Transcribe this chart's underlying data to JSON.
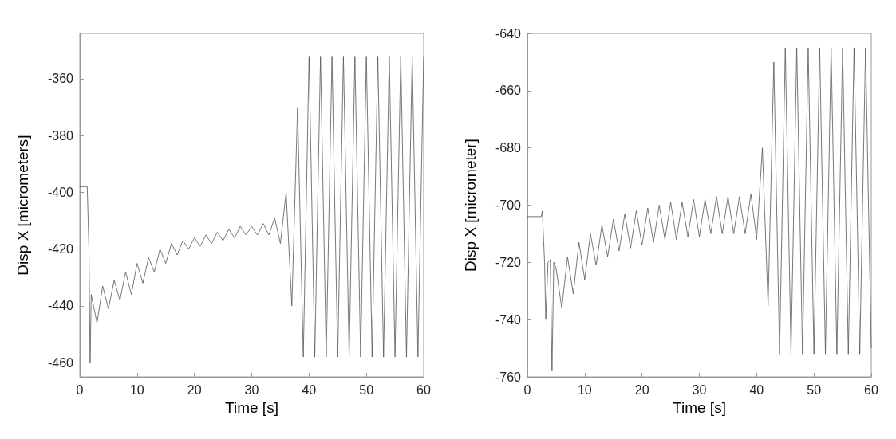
{
  "chart_data": [
    {
      "type": "line",
      "xlabel": "Time [s]",
      "ylabel": "Disp X [micrometers]",
      "xlim": [
        0,
        60
      ],
      "xticks": [
        0,
        10,
        20,
        30,
        40,
        50,
        60
      ],
      "ylim": [
        -465,
        -344
      ],
      "yticks": [
        -460,
        -440,
        -420,
        -400,
        -380,
        -360
      ],
      "grid": false,
      "marker": "none",
      "line_style": "solid",
      "series": [
        {
          "color": "#555555",
          "x": [
            0,
            1.3,
            1.6,
            1.8,
            2,
            3,
            4,
            5,
            6,
            7,
            8,
            9,
            10,
            11,
            12,
            13,
            14,
            15,
            16,
            17,
            18,
            19,
            20,
            21,
            22,
            23,
            24,
            25,
            26,
            27,
            28,
            29,
            30,
            31,
            32,
            33,
            34,
            35,
            36,
            37,
            38,
            39,
            40,
            41,
            42,
            43,
            44,
            45,
            46,
            47,
            48,
            49,
            50,
            51,
            52,
            53,
            54,
            55,
            56,
            57,
            58,
            59,
            60
          ],
          "values": [
            -398,
            -398,
            -420,
            -460,
            -436,
            -446,
            -433,
            -441,
            -431,
            -438,
            -428,
            -436,
            -425,
            -432,
            -423,
            -428,
            -420,
            -425,
            -418,
            -422,
            -417,
            -420,
            -416,
            -419,
            -415,
            -418,
            -414,
            -417,
            -413,
            -416,
            -412,
            -415,
            -412,
            -415,
            -411,
            -415,
            -409,
            -418,
            -400,
            -440,
            -370,
            -458,
            -352,
            -458,
            -352,
            -458,
            -352,
            -458,
            -352,
            -458,
            -352,
            -458,
            -352,
            -458,
            -352,
            -458,
            -352,
            -458,
            -352,
            -458,
            -352,
            -458,
            -352
          ]
        }
      ]
    },
    {
      "type": "line",
      "xlabel": "Time [s]",
      "ylabel": "Disp X [micrometer]",
      "xlim": [
        0,
        60
      ],
      "xticks": [
        0,
        10,
        20,
        30,
        40,
        50,
        60
      ],
      "ylim": [
        -760,
        -640
      ],
      "yticks": [
        -760,
        -740,
        -720,
        -700,
        -680,
        -660,
        -640
      ],
      "grid": false,
      "marker": "none",
      "line_style": "solid",
      "series": [
        {
          "color": "#555555",
          "x": [
            0,
            2.4,
            2.6,
            3,
            3.2,
            3.6,
            4,
            4.3,
            4.6,
            5,
            6,
            7,
            8,
            9,
            10,
            11,
            12,
            13,
            14,
            15,
            16,
            17,
            18,
            19,
            20,
            21,
            22,
            23,
            24,
            25,
            26,
            27,
            28,
            29,
            30,
            31,
            32,
            33,
            34,
            35,
            36,
            37,
            38,
            39,
            40,
            41,
            42,
            43,
            44,
            45,
            46,
            47,
            48,
            49,
            50,
            51,
            52,
            53,
            54,
            55,
            56,
            57,
            58,
            59,
            60
          ],
          "values": [
            -704,
            -704,
            -702,
            -720,
            -740,
            -720,
            -719,
            -758,
            -720,
            -722,
            -736,
            -718,
            -731,
            -713,
            -726,
            -710,
            -721,
            -707,
            -718,
            -705,
            -716,
            -703,
            -715,
            -702,
            -714,
            -701,
            -713,
            -700,
            -712,
            -699,
            -712,
            -699,
            -711,
            -698,
            -711,
            -698,
            -710,
            -697,
            -710,
            -697,
            -710,
            -697,
            -710,
            -696,
            -712,
            -680,
            -735,
            -650,
            -752,
            -645,
            -752,
            -645,
            -752,
            -645,
            -752,
            -645,
            -752,
            -645,
            -752,
            -645,
            -752,
            -645,
            -752,
            -645,
            -750
          ]
        }
      ]
    }
  ]
}
